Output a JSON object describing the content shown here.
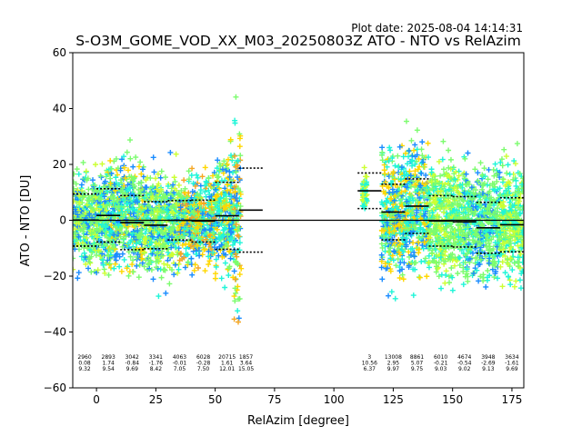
{
  "plot_date": "Plot date: 2025-08-04 14:14:31",
  "chart_data": {
    "type": "scatter",
    "title": "S-O3M_GOME_VOD_XX_M03_20250803Z ATO - NTO vs RelAzim",
    "xlabel": "RelAzim [degree]",
    "ylabel": "ATO - NTO [DU]",
    "xlim": [
      -10,
      180
    ],
    "ylim": [
      -60,
      60
    ],
    "xticks": [
      0,
      25,
      50,
      75,
      100,
      125,
      150,
      175
    ],
    "yticks": [
      -60,
      -40,
      -20,
      0,
      20,
      40,
      60
    ],
    "zero_line": 0,
    "marker": "+",
    "colors": {
      "lime": "#7cfc6e",
      "aqua": "#1ff5d8",
      "yellow": "#ffd700",
      "blue": "#1a8cff",
      "yellowgreen": "#ccff33",
      "navy": "#0a3cd0",
      "orange": "#f5a623"
    },
    "segments": [
      {
        "x0": -10,
        "x1": 1,
        "mean": 0.08,
        "plus_std": 9.4,
        "minus_std": -9.24
      },
      {
        "x0": 0,
        "x1": 10,
        "mean": 1.74,
        "plus_std": 11.28,
        "minus_std": -7.8
      },
      {
        "x0": 10,
        "x1": 20,
        "mean": -0.84,
        "plus_std": 8.85,
        "minus_std": -10.53
      },
      {
        "x0": 20,
        "x1": 30,
        "mean": -1.76,
        "plus_std": 6.66,
        "minus_std": -10.18
      },
      {
        "x0": 30,
        "x1": 40,
        "mean": -0.01,
        "plus_std": 7.04,
        "minus_std": -7.06
      },
      {
        "x0": 40,
        "x1": 50,
        "mean": -0.28,
        "plus_std": 7.22,
        "minus_std": -7.78
      },
      {
        "x0": 50,
        "x1": 60,
        "mean": 1.61,
        "plus_std": 13.62,
        "minus_std": -10.4
      },
      {
        "x0": 60,
        "x1": 70,
        "mean": 3.64,
        "plus_std": 18.69,
        "minus_std": -11.41
      },
      {
        "x0": 110,
        "x1": 120,
        "mean": 10.56,
        "plus_std": 16.93,
        "minus_std": 4.19
      },
      {
        "x0": 120,
        "x1": 130,
        "mean": 2.95,
        "plus_std": 12.92,
        "minus_std": -7.02
      },
      {
        "x0": 130,
        "x1": 140,
        "mean": 5.07,
        "plus_std": 14.82,
        "minus_std": -4.68
      },
      {
        "x0": 140,
        "x1": 150,
        "mean": -0.21,
        "plus_std": 8.82,
        "minus_std": -9.24
      },
      {
        "x0": 150,
        "x1": 160,
        "mean": -0.54,
        "plus_std": 8.48,
        "minus_std": -9.56
      },
      {
        "x0": 160,
        "x1": 170,
        "mean": -2.69,
        "plus_std": 6.44,
        "minus_std": -11.82
      },
      {
        "x0": 170,
        "x1": 180,
        "mean": -1.61,
        "plus_std": 8.08,
        "minus_std": -11.3
      }
    ],
    "stats": [
      {
        "x": -5,
        "count": "2960",
        "mean": "0.08",
        "std": "9.32"
      },
      {
        "x": 5,
        "count": "2893",
        "mean": "1.74",
        "std": "9.54"
      },
      {
        "x": 15,
        "count": "3042",
        "mean": "-0.84",
        "std": "9.69"
      },
      {
        "x": 25,
        "count": "3341",
        "mean": "-1.76",
        "std": "8.42"
      },
      {
        "x": 35,
        "count": "4063",
        "mean": "-0.01",
        "std": "7.05"
      },
      {
        "x": 45,
        "count": "6028",
        "mean": "-0.28",
        "std": "7.50"
      },
      {
        "x": 55,
        "count": "20715",
        "mean": "1.61",
        "std": "12.01"
      },
      {
        "x": 63,
        "count": "1857",
        "mean": "3.64",
        "std": "15.05"
      },
      {
        "x": 115,
        "count": "3",
        "mean": "10.56",
        "std": "6.37"
      },
      {
        "x": 125,
        "count": "13008",
        "mean": "2.95",
        "std": "9.97"
      },
      {
        "x": 135,
        "count": "8861",
        "mean": "5.07",
        "std": "9.75"
      },
      {
        "x": 145,
        "count": "6010",
        "mean": "-0.21",
        "std": "9.03"
      },
      {
        "x": 155,
        "count": "4674",
        "mean": "-0.54",
        "std": "9.02"
      },
      {
        "x": 165,
        "count": "3948",
        "mean": "-2.69",
        "std": "9.13"
      },
      {
        "x": 175,
        "count": "3634",
        "mean": "-1.61",
        "std": "9.69"
      }
    ],
    "scatter_bands": [
      {
        "x0": -10,
        "x1": 5,
        "center": 0,
        "spread": 20,
        "palette": [
          "lime",
          "aqua",
          "lime",
          "yellowgreen",
          "blue"
        ]
      },
      {
        "x0": 5,
        "x1": 20,
        "center": 2,
        "spread": 22,
        "palette": [
          "lime",
          "aqua",
          "yellow",
          "lime",
          "blue"
        ]
      },
      {
        "x0": 20,
        "x1": 35,
        "center": -1,
        "spread": 20,
        "palette": [
          "lime",
          "aqua",
          "blue",
          "yellowgreen",
          "lime"
        ]
      },
      {
        "x0": 35,
        "x1": 50,
        "center": 0,
        "spread": 18,
        "palette": [
          "lime",
          "aqua",
          "orange",
          "yellow",
          "blue"
        ]
      },
      {
        "x0": 50,
        "x1": 58,
        "center": 2,
        "spread": 24,
        "palette": [
          "aqua",
          "lime",
          "blue",
          "yellow"
        ]
      },
      {
        "x0": 58,
        "x1": 61,
        "center": 0,
        "spread": 40,
        "palette": [
          "blue",
          "aqua",
          "orange",
          "yellow",
          "lime"
        ]
      },
      {
        "x0": 112,
        "x1": 114,
        "center": 10,
        "spread": 8,
        "palette": [
          "aqua",
          "yellowgreen"
        ]
      },
      {
        "x0": 120,
        "x1": 130,
        "center": 2,
        "spread": 28,
        "palette": [
          "aqua",
          "blue",
          "lime",
          "yellow"
        ]
      },
      {
        "x0": 130,
        "x1": 140,
        "center": 4,
        "spread": 26,
        "palette": [
          "lime",
          "aqua",
          "yellow",
          "blue"
        ]
      },
      {
        "x0": 140,
        "x1": 155,
        "center": 0,
        "spread": 24,
        "palette": [
          "lime",
          "aqua",
          "yellowgreen",
          "lime"
        ]
      },
      {
        "x0": 155,
        "x1": 170,
        "center": -1,
        "spread": 22,
        "palette": [
          "aqua",
          "lime",
          "blue",
          "lime"
        ]
      },
      {
        "x0": 170,
        "x1": 180,
        "center": 0,
        "spread": 24,
        "palette": [
          "lime",
          "aqua",
          "yellowgreen"
        ]
      }
    ]
  }
}
